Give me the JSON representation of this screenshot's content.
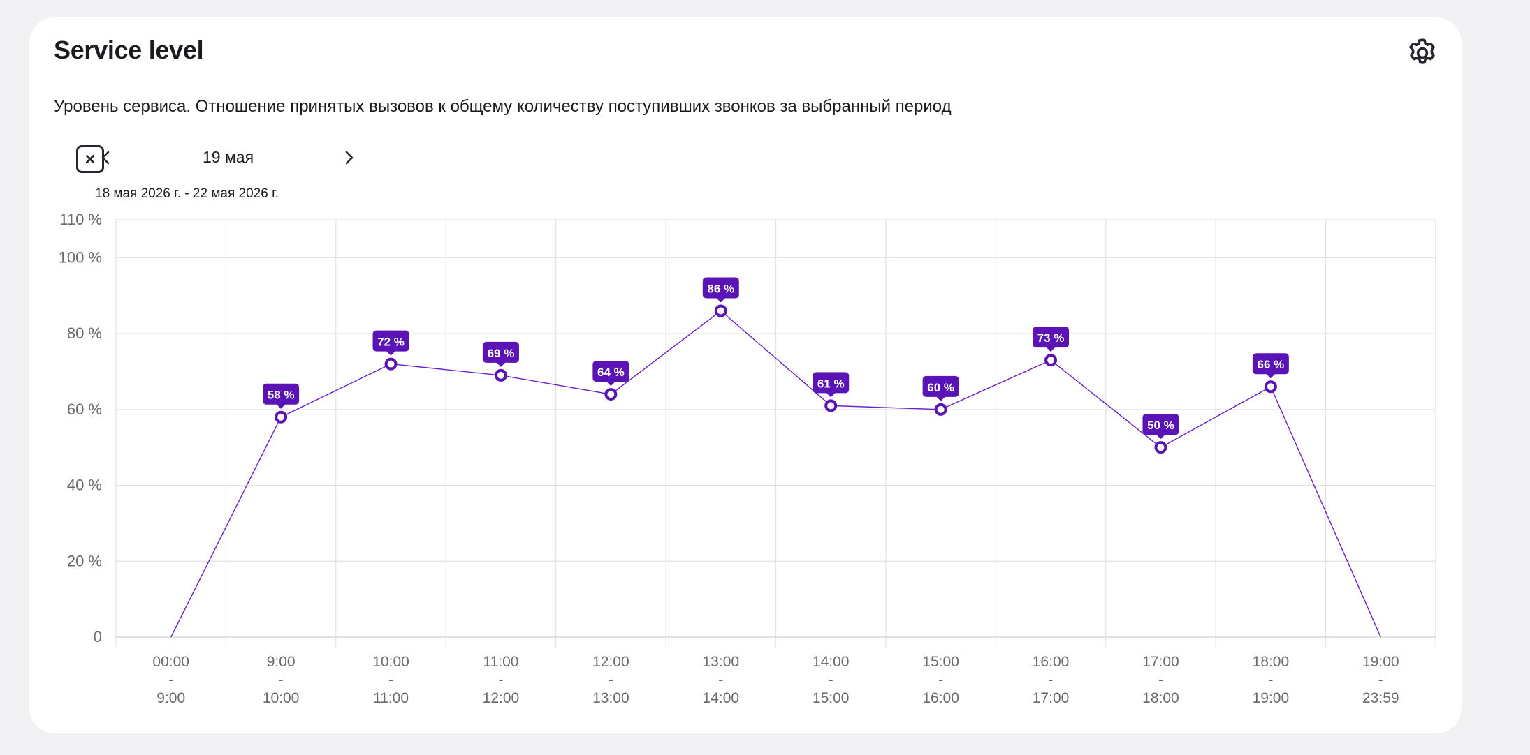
{
  "card": {
    "title": "Service level",
    "description": "Уровень сервиса. Отношение принятых вызовов к общему количеству поступивших звонков за выбранный период",
    "settings_icon": "gear-icon"
  },
  "date_nav": {
    "close_icon": "close-icon",
    "prev_icon": "chevron-left-icon",
    "next_icon": "chevron-right-icon",
    "current_date": "19 мая",
    "range": "18 мая 2026 г. - 22 мая 2026 г."
  },
  "colors": {
    "accent": "#6b1fc9",
    "label_bg": "#5a14b5",
    "grid": "#e3e3e6",
    "axis_text": "#6a6a70"
  },
  "chart_data": {
    "type": "line",
    "title": "",
    "xlabel": "",
    "ylabel": "",
    "ylim": [
      0,
      110
    ],
    "yticks": [
      0,
      20,
      40,
      60,
      80,
      100,
      110
    ],
    "ytick_labels": [
      "0",
      "20 %",
      "40 %",
      "60 %",
      "80 %",
      "100 %",
      "110 %"
    ],
    "grid": true,
    "categories": [
      [
        "00:00",
        "-",
        "9:00"
      ],
      [
        "9:00",
        "-",
        "10:00"
      ],
      [
        "10:00",
        "-",
        "11:00"
      ],
      [
        "11:00",
        "-",
        "12:00"
      ],
      [
        "12:00",
        "-",
        "13:00"
      ],
      [
        "13:00",
        "-",
        "14:00"
      ],
      [
        "14:00",
        "-",
        "15:00"
      ],
      [
        "15:00",
        "-",
        "16:00"
      ],
      [
        "16:00",
        "-",
        "17:00"
      ],
      [
        "17:00",
        "-",
        "18:00"
      ],
      [
        "18:00",
        "-",
        "19:00"
      ],
      [
        "19:00",
        "-",
        "23:59"
      ]
    ],
    "series": [
      {
        "values": [
          0,
          58,
          72,
          69,
          64,
          86,
          61,
          60,
          73,
          50,
          66,
          0
        ],
        "labels": [
          null,
          "58 %",
          "72 %",
          "69 %",
          "64 %",
          "86 %",
          "61 %",
          "60 %",
          "73 %",
          "50 %",
          "66 %",
          null
        ]
      }
    ]
  }
}
